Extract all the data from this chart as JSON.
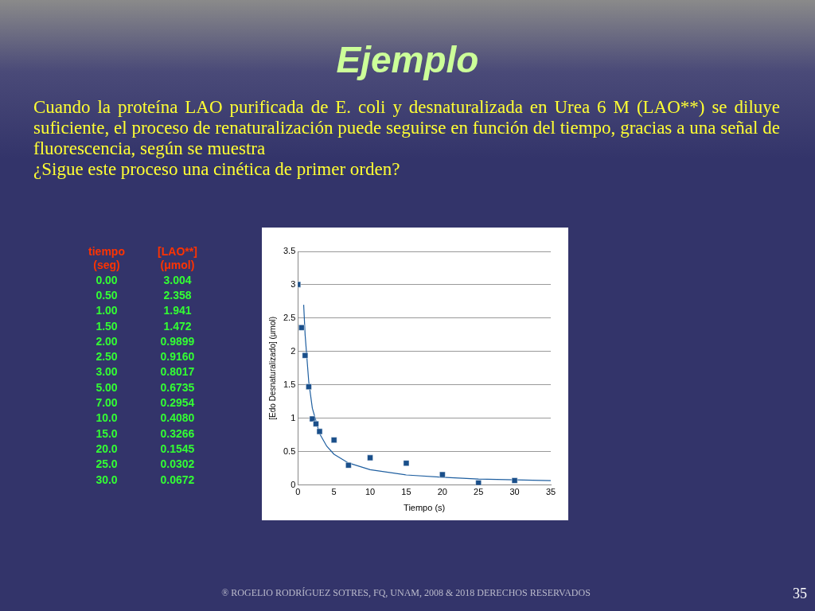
{
  "chart_data": {
    "type": "scatter",
    "title": "Ejemplo",
    "subtitle": "Cuando la proteína LAO purificada de E. coli y desnaturalizada en Urea 6 M (LAO**) se diluye suficiente,  el proceso de renaturalización puede seguirse en función del tiempo, gracias a una señal de fluorescencia, según se muestra\n ¿Sigue este proceso una cinética de primer orden?",
    "xlabel": "Tiempo (s)",
    "ylabel": "[Edo Desnaturalizado] (μmol)",
    "annotations": [
      "tiempo\n(seg)",
      "[LAO**]\n(μmol)",
      "0.00",
      "3.004",
      "0.50",
      "2.358",
      "1.00",
      "1.941",
      "1.50",
      "1.472",
      "2.00",
      "0.9899",
      "2.50",
      "0.9160",
      "3.00",
      "0.8017",
      "5.00",
      "0.6735",
      "7.00",
      "0.2954",
      "10.0",
      "0.4080",
      "15.0",
      "0.3266",
      "20.0",
      "0.1545",
      "25.0",
      "0.0302",
      "30.0",
      "0.0672",
      "® ROGELIO RODRÍGUEZ SOTRES, FQ, UNAM, 2008 &  2018 DERECHOS RESERVADOS",
      "35"
    ],
    "xlim": [
      0,
      35
    ],
    "xticks": [
      0,
      5,
      10,
      15,
      20,
      25,
      30,
      35
    ],
    "ylim": [
      0,
      3.5
    ],
    "yticks": [
      0,
      0.5,
      1,
      1.5,
      2,
      2.5,
      3,
      3.5
    ],
    "grid": "y",
    "legend": false,
    "series": [
      {
        "marker": "square",
        "color": "#1a4f8a",
        "x": [
          0,
          0.5,
          1,
          1.5,
          2,
          2.5,
          3,
          5,
          7,
          10,
          15,
          20,
          25,
          30
        ],
        "values": [
          3.004,
          2.358,
          1.941,
          1.472,
          0.9899,
          0.916,
          0.8017,
          0.6735,
          0.2954,
          0.408,
          0.3266,
          0.1545,
          0.0302,
          0.0672
        ]
      },
      {
        "type": "line",
        "marker": "none",
        "line_style": "solid",
        "color": "#1f5fa0",
        "x": [
          0.8,
          1,
          1.5,
          2,
          3,
          4,
          5,
          7,
          10,
          15,
          20,
          25,
          30,
          35
        ],
        "values": [
          2.7,
          2.25,
          1.55,
          1.15,
          0.77,
          0.58,
          0.46,
          0.33,
          0.23,
          0.15,
          0.115,
          0.09,
          0.077,
          0.066
        ]
      }
    ]
  }
}
